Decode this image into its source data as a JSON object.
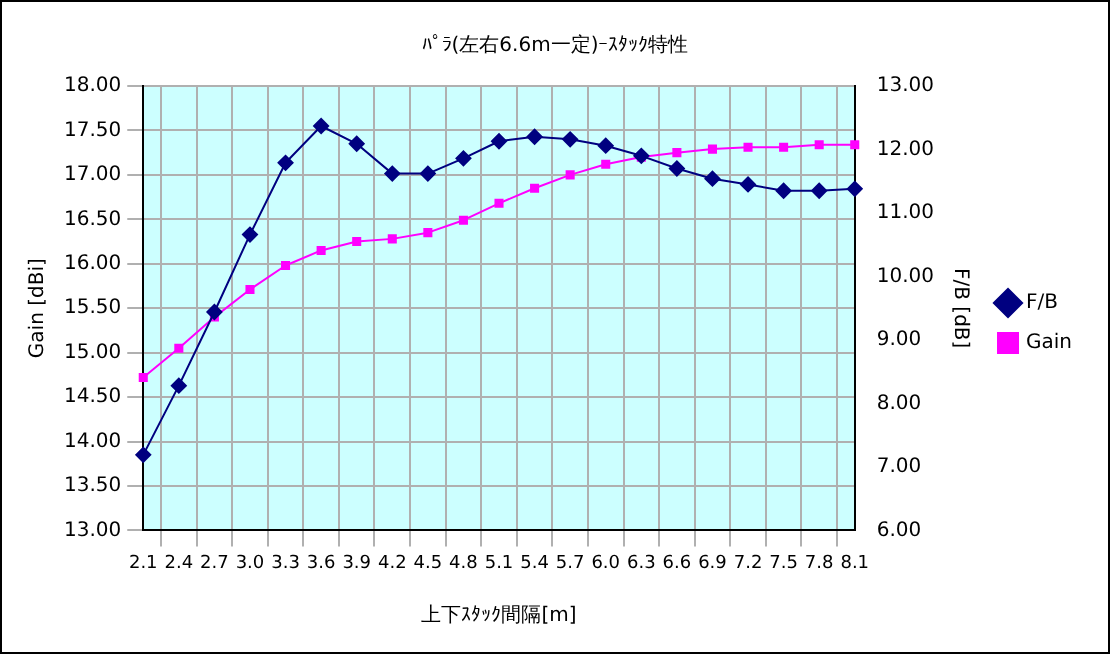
{
  "chart_data": {
    "type": "line",
    "title": "ﾊﾟﾗ(左右6.6m一定)ｰｽﾀｯｸ特性",
    "xlabel": "上下ｽﾀｯｸ間隔[m]",
    "ylabel": "Gain [dBi]",
    "y2label": "F/B [dB]",
    "categories": [
      "2.1",
      "2.4",
      "2.7",
      "3.0",
      "3.3",
      "3.6",
      "3.9",
      "4.2",
      "4.5",
      "4.8",
      "5.1",
      "5.4",
      "5.7",
      "6.0",
      "6.3",
      "6.6",
      "6.9",
      "7.2",
      "7.5",
      "7.8",
      "8.1"
    ],
    "series": [
      {
        "name": "Gain",
        "color": "#ff00ff",
        "marker": "square",
        "values": [
          14.72,
          15.05,
          15.4,
          15.71,
          15.98,
          16.15,
          16.25,
          16.28,
          16.35,
          16.49,
          16.68,
          16.85,
          17.0,
          17.12,
          17.2,
          17.25,
          17.29,
          17.31,
          17.31,
          17.34,
          17.34
        ]
      },
      {
        "name": "F/B",
        "color": "#000080",
        "marker": "diamond",
        "axis": "y2",
        "values": [
          7.19,
          8.28,
          9.44,
          10.66,
          11.79,
          12.37,
          12.09,
          11.62,
          11.62,
          11.86,
          12.13,
          12.2,
          12.16,
          12.06,
          11.9,
          11.7,
          11.54,
          11.45,
          11.35,
          11.35,
          11.38
        ]
      }
    ],
    "ylim": [
      13,
      18
    ],
    "yticks": [
      {
        "value": 13,
        "label": "13.00"
      },
      {
        "value": 13.5,
        "label": "13.50"
      },
      {
        "value": 14,
        "label": "14.00"
      },
      {
        "value": 14.5,
        "label": "14.50"
      },
      {
        "value": 15,
        "label": "15.00"
      },
      {
        "value": 15.5,
        "label": "15.50"
      },
      {
        "value": 16,
        "label": "16.00"
      },
      {
        "value": 16.5,
        "label": "16.50"
      },
      {
        "value": 17,
        "label": "17.00"
      },
      {
        "value": 17.5,
        "label": "17.50"
      },
      {
        "value": 18,
        "label": "18.00"
      }
    ],
    "y2lim": [
      6,
      13
    ],
    "y2ticks": [
      {
        "value": 6,
        "label": "6.00"
      },
      {
        "value": 7,
        "label": "7.00"
      },
      {
        "value": 8,
        "label": "8.00"
      },
      {
        "value": 9,
        "label": "9.00"
      },
      {
        "value": 10,
        "label": "10.00"
      },
      {
        "value": 11,
        "label": "11.00"
      },
      {
        "value": 12,
        "label": "12.00"
      },
      {
        "value": 13,
        "label": "13.00"
      }
    ],
    "grid": true,
    "legend": "right",
    "line_style": "solid"
  }
}
